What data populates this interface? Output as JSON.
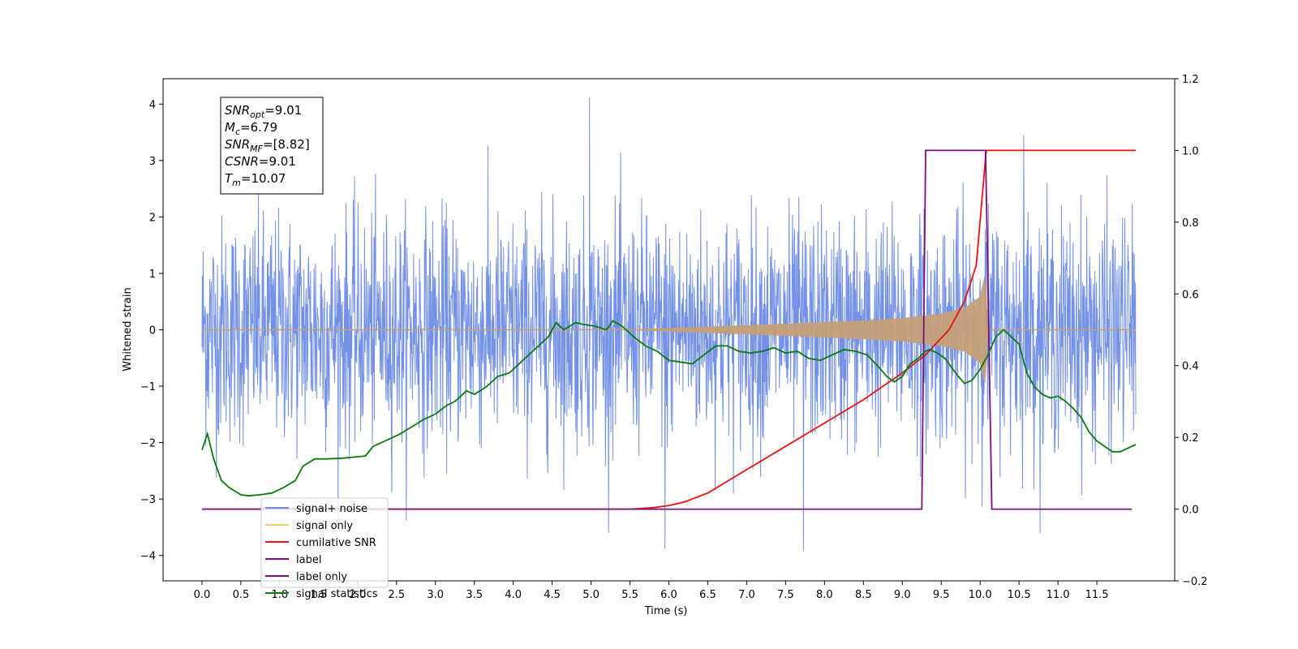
{
  "chart_data": {
    "type": "line",
    "xlabel": "Time (s)",
    "ylabel_left": "Whitened strain",
    "ylabel_right": "",
    "x_range": [
      -0.5,
      12.5
    ],
    "y_left_range": [
      -4.45,
      4.45
    ],
    "y_right_range": [
      -0.2,
      1.2
    ],
    "x_ticks": [
      "0.0",
      "0.5",
      "1.0",
      "1.5",
      "2.0",
      "2.5",
      "3.0",
      "3.5",
      "4.0",
      "4.5",
      "5.0",
      "5.5",
      "6.0",
      "6.5",
      "7.0",
      "7.5",
      "8.0",
      "8.5",
      "9.0",
      "9.5",
      "10.0",
      "10.5",
      "11.0",
      "11.5"
    ],
    "y_left_ticks": [
      "-4",
      "-3",
      "-2",
      "-1",
      "0",
      "1",
      "2",
      "3",
      "4"
    ],
    "y_right_ticks": [
      "-0.2",
      "0.0",
      "0.2",
      "0.4",
      "0.6",
      "0.8",
      "1.0",
      "1.2"
    ],
    "info_box": [
      {
        "main": "SNR",
        "sub": "opt",
        "rest": "=9.01"
      },
      {
        "main": "M",
        "sub": "c",
        "rest": "=6.79"
      },
      {
        "main": "SNR",
        "sub": "MF",
        "rest": "=[8.82]"
      },
      {
        "main": "CSNR",
        "sub": "",
        "rest": "=9.01"
      },
      {
        "main": "T",
        "sub": "m",
        "rest": "=10.07"
      }
    ],
    "legend_position": "lower-left",
    "legend": [
      {
        "label": "signal+ noise",
        "color": "#6b8be6"
      },
      {
        "label": "signal only",
        "color": "#ffc766"
      },
      {
        "label": "cumilative SNR",
        "color": "#ee1111"
      },
      {
        "label": "label",
        "color": "#7b0f7b"
      },
      {
        "label": "label only",
        "color": "#7b0f7b"
      },
      {
        "label": "signal statistics",
        "color": "#0a7a0a"
      }
    ],
    "series": [
      {
        "name": "signal+ noise",
        "axis": "left",
        "description_of_values": "gaussian-like noise, std ~1",
        "color": "#6b8be6",
        "x_start": 0.0,
        "x_end": 12.0,
        "noise_std": 1.05,
        "noise_extremes": [
          [
            4.98,
            4.12
          ],
          [
            7.73,
            -3.92
          ],
          [
            5.95,
            -3.88
          ],
          [
            10.56,
            3.45
          ]
        ]
      },
      {
        "name": "signal only",
        "axis": "left",
        "color": "#c4a078",
        "chirp_start": 5.5,
        "merger": 10.07,
        "envelope": [
          [
            5.5,
            0.0
          ],
          [
            6.5,
            0.05
          ],
          [
            7.5,
            0.1
          ],
          [
            8.5,
            0.16
          ],
          [
            9.0,
            0.2
          ],
          [
            9.5,
            0.28
          ],
          [
            9.8,
            0.38
          ],
          [
            10.0,
            0.58
          ],
          [
            10.07,
            1.0
          ],
          [
            10.09,
            0.0
          ]
        ]
      },
      {
        "name": "cumilative SNR",
        "axis": "right",
        "color": "#ee1111",
        "points": [
          [
            0.0,
            0.0
          ],
          [
            5.5,
            0.0
          ],
          [
            5.8,
            0.004
          ],
          [
            6.0,
            0.01
          ],
          [
            6.2,
            0.02
          ],
          [
            6.5,
            0.045
          ],
          [
            7.0,
            0.11
          ],
          [
            7.5,
            0.175
          ],
          [
            8.0,
            0.24
          ],
          [
            8.5,
            0.305
          ],
          [
            9.0,
            0.38
          ],
          [
            9.3,
            0.43
          ],
          [
            9.6,
            0.5
          ],
          [
            9.8,
            0.58
          ],
          [
            9.95,
            0.68
          ],
          [
            10.07,
            0.98
          ],
          [
            10.08,
            1.0
          ],
          [
            12.0,
            1.0
          ]
        ]
      },
      {
        "name": "label",
        "axis": "right",
        "color": "#7b0f7b",
        "points": [
          [
            0.0,
            0.0
          ],
          [
            9.25,
            0.0
          ],
          [
            9.3,
            1.0
          ],
          [
            10.07,
            1.0
          ],
          [
            10.15,
            0.0
          ],
          [
            11.95,
            0.0
          ]
        ]
      },
      {
        "name": "signal statistics",
        "axis": "right",
        "color": "#0a7a0a",
        "points": [
          [
            0.0,
            0.165
          ],
          [
            0.07,
            0.21
          ],
          [
            0.15,
            0.14
          ],
          [
            0.25,
            0.08
          ],
          [
            0.35,
            0.06
          ],
          [
            0.5,
            0.04
          ],
          [
            0.6,
            0.037
          ],
          [
            0.75,
            0.04
          ],
          [
            0.9,
            0.045
          ],
          [
            1.05,
            0.06
          ],
          [
            1.2,
            0.08
          ],
          [
            1.3,
            0.12
          ],
          [
            1.45,
            0.14
          ],
          [
            1.6,
            0.14
          ],
          [
            1.8,
            0.142
          ],
          [
            2.0,
            0.146
          ],
          [
            2.1,
            0.148
          ],
          [
            2.2,
            0.175
          ],
          [
            2.4,
            0.195
          ],
          [
            2.55,
            0.21
          ],
          [
            2.7,
            0.23
          ],
          [
            2.85,
            0.25
          ],
          [
            3.0,
            0.265
          ],
          [
            3.15,
            0.29
          ],
          [
            3.25,
            0.3
          ],
          [
            3.4,
            0.33
          ],
          [
            3.5,
            0.32
          ],
          [
            3.65,
            0.34
          ],
          [
            3.8,
            0.37
          ],
          [
            3.95,
            0.38
          ],
          [
            4.05,
            0.4
          ],
          [
            4.15,
            0.42
          ],
          [
            4.3,
            0.45
          ],
          [
            4.45,
            0.48
          ],
          [
            4.55,
            0.52
          ],
          [
            4.65,
            0.5
          ],
          [
            4.8,
            0.52
          ],
          [
            4.9,
            0.515
          ],
          [
            5.05,
            0.51
          ],
          [
            5.2,
            0.5
          ],
          [
            5.28,
            0.525
          ],
          [
            5.4,
            0.51
          ],
          [
            5.55,
            0.48
          ],
          [
            5.7,
            0.455
          ],
          [
            5.85,
            0.44
          ],
          [
            6.0,
            0.415
          ],
          [
            6.15,
            0.41
          ],
          [
            6.3,
            0.405
          ],
          [
            6.45,
            0.43
          ],
          [
            6.6,
            0.455
          ],
          [
            6.75,
            0.455
          ],
          [
            6.9,
            0.44
          ],
          [
            7.05,
            0.435
          ],
          [
            7.2,
            0.44
          ],
          [
            7.35,
            0.45
          ],
          [
            7.5,
            0.435
          ],
          [
            7.65,
            0.44
          ],
          [
            7.8,
            0.42
          ],
          [
            7.95,
            0.415
          ],
          [
            8.1,
            0.43
          ],
          [
            8.25,
            0.445
          ],
          [
            8.4,
            0.44
          ],
          [
            8.55,
            0.43
          ],
          [
            8.7,
            0.395
          ],
          [
            8.8,
            0.37
          ],
          [
            8.9,
            0.355
          ],
          [
            9.0,
            0.37
          ],
          [
            9.1,
            0.405
          ],
          [
            9.2,
            0.42
          ],
          [
            9.3,
            0.44
          ],
          [
            9.35,
            0.445
          ],
          [
            9.45,
            0.435
          ],
          [
            9.55,
            0.42
          ],
          [
            9.65,
            0.39
          ],
          [
            9.72,
            0.37
          ],
          [
            9.8,
            0.35
          ],
          [
            9.9,
            0.36
          ],
          [
            10.0,
            0.39
          ],
          [
            10.1,
            0.43
          ],
          [
            10.2,
            0.48
          ],
          [
            10.3,
            0.5
          ],
          [
            10.4,
            0.48
          ],
          [
            10.5,
            0.46
          ],
          [
            10.6,
            0.38
          ],
          [
            10.7,
            0.34
          ],
          [
            10.8,
            0.32
          ],
          [
            10.9,
            0.31
          ],
          [
            11.0,
            0.315
          ],
          [
            11.1,
            0.3
          ],
          [
            11.2,
            0.28
          ],
          [
            11.3,
            0.255
          ],
          [
            11.4,
            0.215
          ],
          [
            11.5,
            0.19
          ],
          [
            11.6,
            0.175
          ],
          [
            11.7,
            0.16
          ],
          [
            11.8,
            0.16
          ],
          [
            11.9,
            0.17
          ],
          [
            12.0,
            0.18
          ]
        ]
      }
    ]
  }
}
